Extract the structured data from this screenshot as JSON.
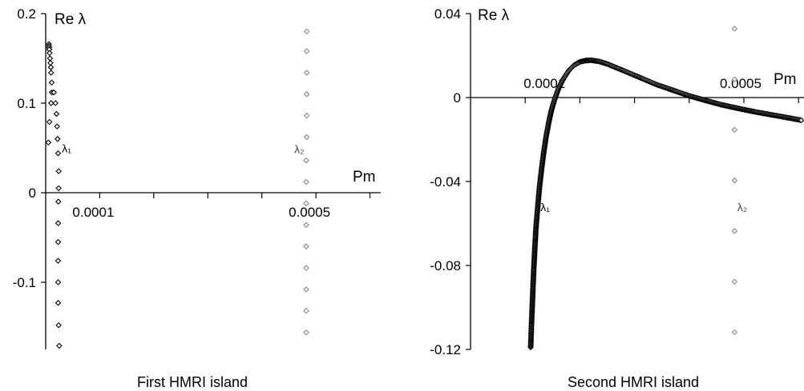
{
  "chart_data": [
    {
      "type": "scatter",
      "caption": "First HMRI island",
      "xlabel": "Pm",
      "ylabel": "Re λ",
      "xlim": [
        0,
        0.00062
      ],
      "ylim": [
        -0.175,
        0.2
      ],
      "x_ticks": [
        {
          "value": 0.0001,
          "label": "0.0001"
        },
        {
          "value": 0.0005,
          "label": "0.0005"
        }
      ],
      "x_minor_ticks": [
        0.0002,
        0.0003,
        0.0004,
        0.0006
      ],
      "y_ticks": [
        {
          "value": 0.2,
          "label": "0.2"
        },
        {
          "value": 0.1,
          "label": "0.1"
        },
        {
          "value": 0,
          "label": "0"
        },
        {
          "value": -0.1,
          "label": "-0.1"
        }
      ],
      "series": [
        {
          "name": "λ1",
          "color": "#000000",
          "points": [
            [
              6e-06,
              0.166
            ],
            [
              6.2e-06,
              0.164
            ],
            [
              6.4e-06,
              0.162
            ],
            [
              6.6e-06,
              0.16
            ],
            [
              7.2e-06,
              0.156
            ],
            [
              8e-06,
              0.15
            ],
            [
              8.8e-06,
              0.145
            ],
            [
              9.6e-06,
              0.14
            ],
            [
              1e-05,
              0.134
            ],
            [
              1.1e-05,
              0.123
            ],
            [
              1.15e-05,
              0.112
            ],
            [
              1e-05,
              0.1
            ],
            [
              7e-06,
              0.079
            ],
            [
              5e-06,
              0.056
            ],
            [
              1.5e-05,
              0.112
            ],
            [
              1.8e-05,
              0.1
            ],
            [
              2e-05,
              0.088
            ],
            [
              2.1e-05,
              0.074
            ],
            [
              2.2e-05,
              0.06
            ],
            [
              2.3e-05,
              0.044
            ],
            [
              2.4e-05,
              0.024
            ],
            [
              2.4e-05,
              0.005
            ],
            [
              2.35e-05,
              -0.01
            ],
            [
              2.3e-05,
              -0.034
            ],
            [
              2.3e-05,
              -0.055
            ],
            [
              2.3e-05,
              -0.076
            ],
            [
              2.3e-05,
              -0.1
            ],
            [
              2.3e-05,
              -0.123
            ],
            [
              2.4e-05,
              -0.148
            ],
            [
              2.5e-05,
              -0.171
            ]
          ]
        },
        {
          "name": "λ2",
          "color": "#888888",
          "points": [
            [
              0.000483,
              0.18
            ],
            [
              0.000483,
              0.158
            ],
            [
              0.000483,
              0.134
            ],
            [
              0.000483,
              0.11
            ],
            [
              0.000483,
              0.086
            ],
            [
              0.000483,
              0.062
            ],
            [
              0.000482,
              0.036
            ],
            [
              0.000482,
              0.012
            ],
            [
              0.000482,
              -0.012
            ],
            [
              0.000482,
              -0.036
            ],
            [
              0.000482,
              -0.06
            ],
            [
              0.000482,
              -0.084
            ],
            [
              0.000482,
              -0.108
            ],
            [
              0.000482,
              -0.132
            ],
            [
              0.000482,
              -0.156
            ]
          ]
        }
      ],
      "series_labels": [
        {
          "text": "λ₁",
          "x": 3e-05,
          "y": 0.045
        },
        {
          "text": "λ₂",
          "x": 0.00046,
          "y": 0.044
        }
      ]
    },
    {
      "type": "scatter",
      "caption": "Second HMRI island",
      "xlabel": "Pm",
      "ylabel": "Re λ",
      "xlim": [
        0,
        0.00061
      ],
      "ylim": [
        -0.12,
        0.04
      ],
      "x_ticks": [
        {
          "value": 0.0001,
          "label": "0.0001"
        },
        {
          "value": 0.0005,
          "label": "0.0005"
        }
      ],
      "x_minor_ticks": [
        0.0002,
        0.0003,
        0.0004,
        0.0006
      ],
      "y_ticks": [
        {
          "value": 0.04,
          "label": "0.04"
        },
        {
          "value": 0,
          "label": "0"
        },
        {
          "value": -0.04,
          "label": "-0.04"
        },
        {
          "value": -0.08,
          "label": "-0.08"
        },
        {
          "value": -0.12,
          "label": "-0.12"
        }
      ],
      "series": [
        {
          "name": "λ1",
          "color": "#000000",
          "curve": [
            [
              0.00011,
              -0.119
            ],
            [
              0.000112,
              -0.105
            ],
            [
              0.000114,
              -0.092
            ],
            [
              0.000116,
              -0.08
            ],
            [
              0.000118,
              -0.07
            ],
            [
              0.00012,
              -0.061
            ],
            [
              0.000123,
              -0.052
            ],
            [
              0.000126,
              -0.043
            ],
            [
              0.00013,
              -0.034
            ],
            [
              0.000134,
              -0.026
            ],
            [
              0.000138,
              -0.019
            ],
            [
              0.000143,
              -0.012
            ],
            [
              0.000148,
              -0.006
            ],
            [
              0.000155,
              0.0
            ],
            [
              0.000162,
              0.005
            ],
            [
              0.00017,
              0.009
            ],
            [
              0.00018,
              0.013
            ],
            [
              0.00019,
              0.0155
            ],
            [
              0.0002,
              0.017
            ],
            [
              0.00021,
              0.0176
            ],
            [
              0.00022,
              0.0178
            ],
            [
              0.000235,
              0.0172
            ],
            [
              0.00025,
              0.016
            ],
            [
              0.00028,
              0.0128
            ],
            [
              0.00031,
              0.0095
            ],
            [
              0.00034,
              0.0062
            ],
            [
              0.00037,
              0.0035
            ],
            [
              0.0004,
              0.0008
            ],
            [
              0.00043,
              -0.0014
            ],
            [
              0.00046,
              -0.0035
            ],
            [
              0.00049,
              -0.0052
            ],
            [
              0.00052,
              -0.0068
            ],
            [
              0.00055,
              -0.0082
            ],
            [
              0.00058,
              -0.0096
            ],
            [
              0.000605,
              -0.0108
            ]
          ]
        },
        {
          "name": "λ2",
          "color": "#888888",
          "points": [
            [
              0.000483,
              0.0328
            ],
            [
              0.000483,
              0.0087
            ],
            [
              0.000483,
              -0.0154
            ],
            [
              0.000483,
              -0.0395
            ],
            [
              0.000483,
              -0.0636
            ],
            [
              0.000483,
              -0.0877
            ],
            [
              0.000483,
              -0.1118
            ]
          ]
        }
      ],
      "series_labels": [
        {
          "text": "λ₁",
          "x": 0.000128,
          "y": -0.054
        },
        {
          "text": "λ₂",
          "x": 0.000488,
          "y": -0.054
        }
      ]
    }
  ]
}
